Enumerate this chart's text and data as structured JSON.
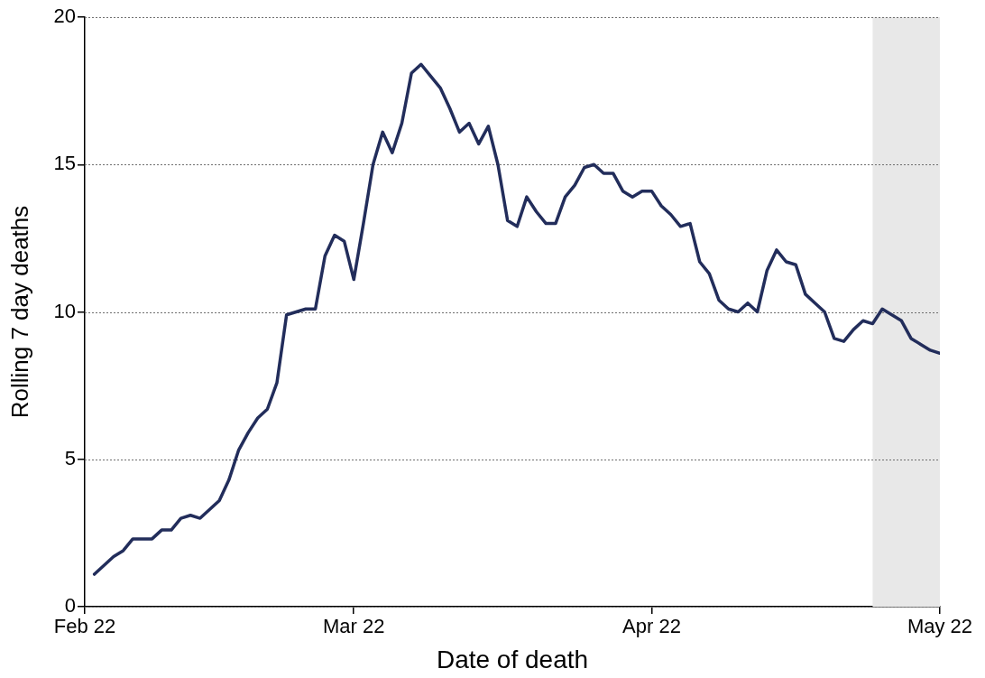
{
  "chart_data": {
    "type": "line",
    "xlabel": "Date of death",
    "ylabel": "Rolling 7 day deaths",
    "x": [
      "2022-02-02",
      "2022-02-03",
      "2022-02-04",
      "2022-02-05",
      "2022-02-06",
      "2022-02-07",
      "2022-02-08",
      "2022-02-09",
      "2022-02-10",
      "2022-02-11",
      "2022-02-12",
      "2022-02-13",
      "2022-02-14",
      "2022-02-15",
      "2022-02-16",
      "2022-02-17",
      "2022-02-18",
      "2022-02-19",
      "2022-02-20",
      "2022-02-21",
      "2022-02-22",
      "2022-02-23",
      "2022-02-24",
      "2022-02-25",
      "2022-02-26",
      "2022-02-27",
      "2022-02-28",
      "2022-03-01",
      "2022-03-02",
      "2022-03-03",
      "2022-03-04",
      "2022-03-05",
      "2022-03-06",
      "2022-03-07",
      "2022-03-08",
      "2022-03-09",
      "2022-03-10",
      "2022-03-11",
      "2022-03-12",
      "2022-03-13",
      "2022-03-14",
      "2022-03-15",
      "2022-03-16",
      "2022-03-17",
      "2022-03-18",
      "2022-03-19",
      "2022-03-20",
      "2022-03-21",
      "2022-03-22",
      "2022-03-23",
      "2022-03-24",
      "2022-03-25",
      "2022-03-26",
      "2022-03-27",
      "2022-03-28",
      "2022-03-29",
      "2022-03-30",
      "2022-03-31",
      "2022-04-01",
      "2022-04-02",
      "2022-04-03",
      "2022-04-04",
      "2022-04-05",
      "2022-04-06",
      "2022-04-07",
      "2022-04-08",
      "2022-04-09",
      "2022-04-10",
      "2022-04-11",
      "2022-04-12",
      "2022-04-13",
      "2022-04-14",
      "2022-04-15",
      "2022-04-16",
      "2022-04-17",
      "2022-04-18",
      "2022-04-19",
      "2022-04-20",
      "2022-04-21",
      "2022-04-22",
      "2022-04-23",
      "2022-04-24",
      "2022-04-25",
      "2022-04-26",
      "2022-04-27",
      "2022-04-28",
      "2022-04-29",
      "2022-04-30",
      "2022-05-01"
    ],
    "series": [
      {
        "color": "#222d5b",
        "values": [
          1.1,
          1.4,
          1.7,
          1.9,
          2.3,
          2.3,
          2.3,
          2.6,
          2.6,
          3.0,
          3.1,
          3.0,
          3.3,
          3.6,
          4.3,
          5.3,
          5.9,
          6.4,
          6.7,
          7.6,
          9.9,
          10.0,
          10.1,
          10.1,
          11.9,
          12.6,
          12.4,
          11.1,
          13.0,
          15.0,
          16.1,
          15.4,
          16.4,
          18.1,
          18.4,
          18.0,
          17.6,
          16.9,
          16.1,
          16.4,
          15.7,
          16.3,
          15.0,
          13.1,
          12.9,
          13.9,
          13.4,
          13.0,
          13.0,
          13.9,
          14.3,
          14.9,
          15.0,
          14.7,
          14.7,
          14.1,
          13.9,
          14.1,
          14.1,
          13.6,
          13.3,
          12.9,
          13.0,
          11.7,
          11.3,
          10.4,
          10.1,
          10.0,
          10.3,
          10.0,
          11.4,
          12.1,
          11.7,
          11.6,
          10.6,
          10.3,
          10.0,
          9.1,
          9.0,
          9.4,
          9.7,
          9.6,
          10.1,
          9.9,
          9.7,
          9.1,
          8.9,
          8.7,
          8.6
        ]
      }
    ],
    "xlim": [
      "2022-02-01",
      "2022-05-01"
    ],
    "xticks": [
      {
        "value": "2022-02-01",
        "label": "Feb 22"
      },
      {
        "value": "2022-03-01",
        "label": "Mar 22"
      },
      {
        "value": "2022-04-01",
        "label": "Apr 22"
      },
      {
        "value": "2022-05-01",
        "label": "May 22"
      }
    ],
    "ylim": [
      0,
      20
    ],
    "yticks": [
      0,
      5,
      10,
      15,
      20
    ],
    "grid": "y",
    "legend": false,
    "marker": "none",
    "line_style": "solid",
    "bands": [
      {
        "axis": "x",
        "from": "2022-04-24",
        "to": "2022-05-01",
        "color": "#e8e8e8"
      }
    ]
  }
}
